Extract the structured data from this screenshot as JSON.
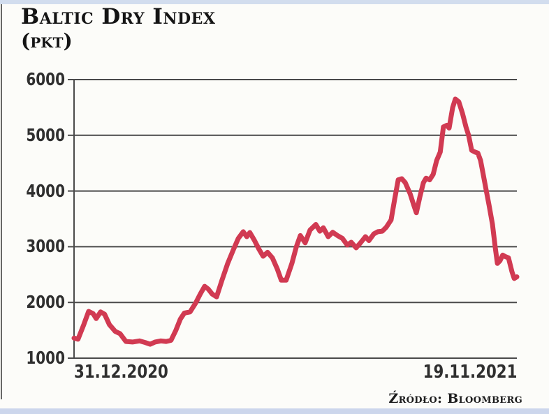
{
  "page": {
    "title": "Baltic Dry Index",
    "subtitle": "(pkt)",
    "source": "Źródło: Bloomberg"
  },
  "chart_data": {
    "type": "line",
    "title": "Baltic Dry Index",
    "unit_label": "(pkt)",
    "source": "Źródło: Bloomberg",
    "x_axis": {
      "start_label": "31.12.2020",
      "end_label": "19.11.2021"
    },
    "ylabel": "",
    "ylim": [
      1000,
      6000
    ],
    "yticks": [
      6000,
      5000,
      4000,
      3000,
      2000,
      1000
    ],
    "grid": true,
    "legend": "none",
    "line_color": "#d13a52",
    "axis_color": "#4a4a4a",
    "points": [
      [
        0.0,
        1360
      ],
      [
        0.009,
        1340
      ],
      [
        0.022,
        1600
      ],
      [
        0.033,
        1840
      ],
      [
        0.043,
        1800
      ],
      [
        0.05,
        1710
      ],
      [
        0.06,
        1830
      ],
      [
        0.069,
        1790
      ],
      [
        0.08,
        1600
      ],
      [
        0.093,
        1480
      ],
      [
        0.104,
        1440
      ],
      [
        0.117,
        1300
      ],
      [
        0.132,
        1290
      ],
      [
        0.148,
        1310
      ],
      [
        0.161,
        1280
      ],
      [
        0.172,
        1250
      ],
      [
        0.183,
        1290
      ],
      [
        0.196,
        1310
      ],
      [
        0.208,
        1300
      ],
      [
        0.219,
        1320
      ],
      [
        0.23,
        1500
      ],
      [
        0.24,
        1700
      ],
      [
        0.249,
        1810
      ],
      [
        0.262,
        1830
      ],
      [
        0.274,
        1980
      ],
      [
        0.285,
        2150
      ],
      [
        0.295,
        2290
      ],
      [
        0.303,
        2240
      ],
      [
        0.312,
        2150
      ],
      [
        0.322,
        2100
      ],
      [
        0.334,
        2400
      ],
      [
        0.347,
        2700
      ],
      [
        0.36,
        2950
      ],
      [
        0.371,
        3150
      ],
      [
        0.382,
        3270
      ],
      [
        0.39,
        3180
      ],
      [
        0.397,
        3255
      ],
      [
        0.407,
        3120
      ],
      [
        0.418,
        2950
      ],
      [
        0.427,
        2830
      ],
      [
        0.437,
        2900
      ],
      [
        0.448,
        2800
      ],
      [
        0.459,
        2600
      ],
      [
        0.468,
        2400
      ],
      [
        0.479,
        2400
      ],
      [
        0.492,
        2700
      ],
      [
        0.502,
        3000
      ],
      [
        0.511,
        3200
      ],
      [
        0.522,
        3070
      ],
      [
        0.533,
        3300
      ],
      [
        0.546,
        3400
      ],
      [
        0.555,
        3280
      ],
      [
        0.563,
        3340
      ],
      [
        0.574,
        3180
      ],
      [
        0.584,
        3260
      ],
      [
        0.595,
        3200
      ],
      [
        0.606,
        3150
      ],
      [
        0.617,
        3030
      ],
      [
        0.626,
        3080
      ],
      [
        0.637,
        2980
      ],
      [
        0.648,
        3080
      ],
      [
        0.658,
        3180
      ],
      [
        0.666,
        3110
      ],
      [
        0.677,
        3230
      ],
      [
        0.686,
        3270
      ],
      [
        0.696,
        3280
      ],
      [
        0.705,
        3350
      ],
      [
        0.716,
        3480
      ],
      [
        0.724,
        3850
      ],
      [
        0.732,
        4200
      ],
      [
        0.74,
        4220
      ],
      [
        0.748,
        4150
      ],
      [
        0.759,
        3950
      ],
      [
        0.767,
        3750
      ],
      [
        0.773,
        3610
      ],
      [
        0.781,
        3900
      ],
      [
        0.789,
        4150
      ],
      [
        0.795,
        4230
      ],
      [
        0.803,
        4200
      ],
      [
        0.811,
        4300
      ],
      [
        0.819,
        4550
      ],
      [
        0.827,
        4700
      ],
      [
        0.834,
        5150
      ],
      [
        0.842,
        5180
      ],
      [
        0.847,
        5130
      ],
      [
        0.855,
        5500
      ],
      [
        0.861,
        5650
      ],
      [
        0.869,
        5600
      ],
      [
        0.877,
        5400
      ],
      [
        0.885,
        5150
      ],
      [
        0.891,
        5000
      ],
      [
        0.898,
        4730
      ],
      [
        0.905,
        4700
      ],
      [
        0.912,
        4680
      ],
      [
        0.918,
        4550
      ],
      [
        0.924,
        4300
      ],
      [
        0.931,
        4000
      ],
      [
        0.937,
        3750
      ],
      [
        0.945,
        3400
      ],
      [
        0.951,
        3000
      ],
      [
        0.956,
        2700
      ],
      [
        0.962,
        2750
      ],
      [
        0.968,
        2850
      ],
      [
        0.975,
        2820
      ],
      [
        0.981,
        2800
      ],
      [
        0.989,
        2550
      ],
      [
        0.994,
        2430
      ],
      [
        1.0,
        2460
      ]
    ]
  }
}
